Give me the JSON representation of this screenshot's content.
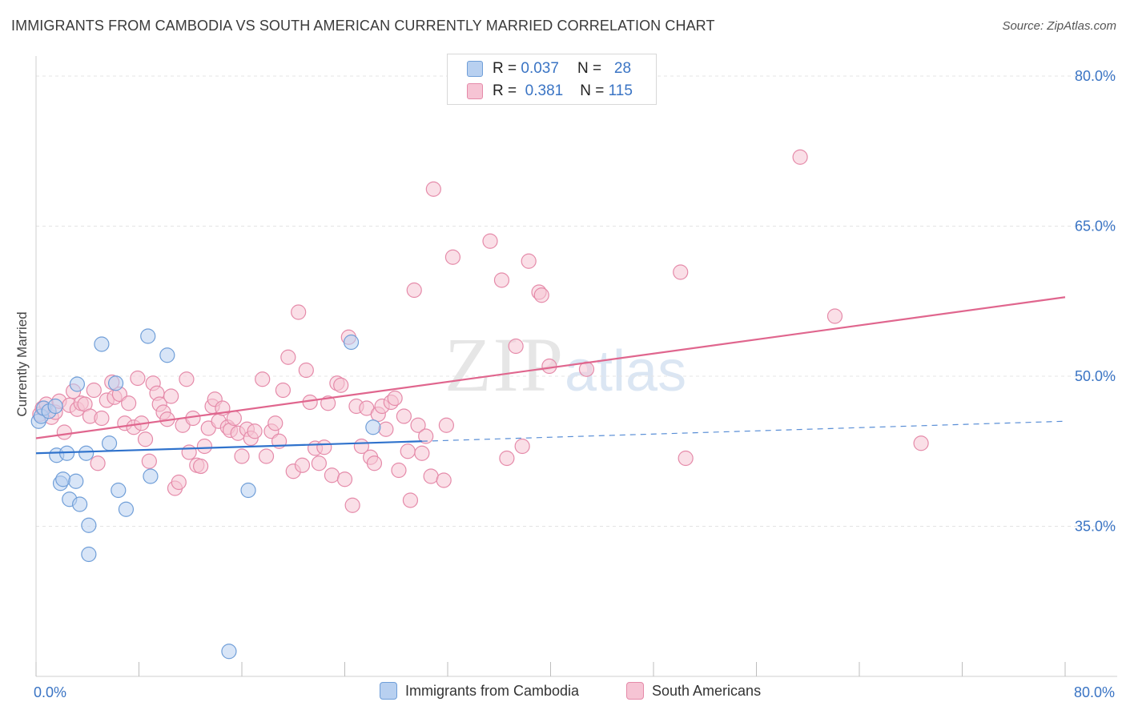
{
  "header": {
    "title": "IMMIGRANTS FROM CAMBODIA VS SOUTH AMERICAN CURRENTLY MARRIED CORRELATION CHART",
    "source": "Source: ZipAtlas.com"
  },
  "watermark": {
    "part1": "ZIP",
    "part2": "atlas"
  },
  "legend_top": [
    {
      "r_label": "R =",
      "r_value": "0.037",
      "n_label": "N =",
      "n_value": "28"
    },
    {
      "r_label": "R =",
      "r_value": "0.381",
      "n_label": "N =",
      "n_value": "115"
    }
  ],
  "legend_bottom": [
    {
      "label": "Immigrants from Cambodia"
    },
    {
      "label": "South Americans"
    }
  ],
  "colors": {
    "blue_fill": "#b8d0f0",
    "blue_stroke": "#6f9ed8",
    "blue_line": "#2f72cc",
    "pink_fill": "#f6c4d4",
    "pink_stroke": "#e58aa9",
    "pink_line": "#e0668e",
    "tick_text": "#3a74c4",
    "grid": "#e4e4e4"
  },
  "chart_data": {
    "type": "scatter",
    "title": "IMMIGRANTS FROM CAMBODIA VS SOUTH AMERICAN CURRENTLY MARRIED CORRELATION CHART",
    "xlabel": "",
    "ylabel": "Currently Married",
    "xlim": [
      0,
      80
    ],
    "ylim": [
      20,
      82
    ],
    "x_tick_labels": [
      {
        "value": 0,
        "label": "0.0%"
      },
      {
        "value": 80,
        "label": "80.0%"
      }
    ],
    "y_tick_labels": [
      {
        "value": 35,
        "label": "35.0%"
      },
      {
        "value": 50,
        "label": "50.0%"
      },
      {
        "value": 65,
        "label": "65.0%"
      },
      {
        "value": 80,
        "label": "80.0%"
      }
    ],
    "grid": true,
    "legend_position": "top-center",
    "series": [
      {
        "name": "Immigrants from Cambodia",
        "r": 0.037,
        "n": 28,
        "trend": {
          "x": [
            0,
            30
          ],
          "y": [
            42.3,
            43.5
          ],
          "dashed_to": [
            80,
            45.5
          ]
        },
        "points": [
          [
            0.2,
            45.5
          ],
          [
            0.4,
            46.0
          ],
          [
            0.6,
            46.8
          ],
          [
            1.0,
            46.5
          ],
          [
            1.5,
            47.0
          ],
          [
            1.6,
            42.1
          ],
          [
            1.9,
            39.3
          ],
          [
            2.1,
            39.7
          ],
          [
            2.4,
            42.3
          ],
          [
            2.6,
            37.7
          ],
          [
            3.1,
            39.5
          ],
          [
            3.2,
            49.2
          ],
          [
            3.4,
            37.2
          ],
          [
            3.9,
            42.3
          ],
          [
            4.1,
            35.1
          ],
          [
            4.1,
            32.2
          ],
          [
            5.1,
            53.2
          ],
          [
            5.7,
            43.3
          ],
          [
            6.2,
            49.3
          ],
          [
            6.4,
            38.6
          ],
          [
            7.0,
            36.7
          ],
          [
            8.7,
            54.0
          ],
          [
            8.9,
            40.0
          ],
          [
            10.2,
            52.1
          ],
          [
            15.0,
            22.5
          ],
          [
            16.5,
            38.6
          ],
          [
            24.5,
            53.4
          ],
          [
            26.2,
            44.9
          ]
        ]
      },
      {
        "name": "South Americans",
        "r": 0.381,
        "n": 115,
        "trend": {
          "x": [
            0,
            80
          ],
          "y": [
            43.8,
            57.9
          ]
        },
        "points": [
          [
            0.3,
            46.2
          ],
          [
            0.5,
            46.8
          ],
          [
            0.8,
            47.2
          ],
          [
            1.2,
            45.9
          ],
          [
            1.5,
            46.4
          ],
          [
            1.8,
            47.5
          ],
          [
            2.2,
            44.4
          ],
          [
            2.6,
            47.1
          ],
          [
            2.9,
            48.5
          ],
          [
            3.2,
            46.7
          ],
          [
            3.5,
            47.3
          ],
          [
            3.8,
            47.2
          ],
          [
            4.2,
            46.0
          ],
          [
            4.5,
            48.6
          ],
          [
            4.8,
            41.3
          ],
          [
            5.1,
            45.8
          ],
          [
            5.5,
            47.6
          ],
          [
            5.9,
            49.4
          ],
          [
            6.1,
            47.9
          ],
          [
            6.5,
            48.2
          ],
          [
            6.9,
            45.3
          ],
          [
            7.2,
            47.3
          ],
          [
            7.6,
            44.9
          ],
          [
            7.9,
            49.8
          ],
          [
            8.2,
            45.3
          ],
          [
            8.5,
            43.7
          ],
          [
            8.8,
            41.5
          ],
          [
            9.1,
            49.3
          ],
          [
            9.4,
            48.3
          ],
          [
            9.6,
            47.2
          ],
          [
            9.9,
            46.4
          ],
          [
            10.2,
            45.7
          ],
          [
            10.5,
            48.0
          ],
          [
            10.8,
            38.8
          ],
          [
            11.1,
            39.4
          ],
          [
            11.4,
            45.1
          ],
          [
            11.7,
            49.7
          ],
          [
            11.9,
            42.4
          ],
          [
            12.2,
            45.8
          ],
          [
            12.5,
            41.1
          ],
          [
            12.8,
            41.0
          ],
          [
            13.1,
            43.0
          ],
          [
            13.4,
            44.8
          ],
          [
            13.7,
            47.0
          ],
          [
            13.9,
            47.7
          ],
          [
            14.2,
            45.5
          ],
          [
            14.5,
            46.8
          ],
          [
            14.9,
            44.9
          ],
          [
            15.1,
            44.6
          ],
          [
            15.4,
            45.8
          ],
          [
            15.7,
            44.3
          ],
          [
            16.0,
            42.0
          ],
          [
            16.4,
            44.7
          ],
          [
            16.7,
            43.8
          ],
          [
            17.0,
            44.5
          ],
          [
            17.6,
            49.7
          ],
          [
            17.9,
            42.0
          ],
          [
            18.3,
            44.5
          ],
          [
            18.6,
            45.3
          ],
          [
            18.9,
            43.5
          ],
          [
            19.2,
            48.6
          ],
          [
            19.6,
            51.9
          ],
          [
            20.0,
            40.5
          ],
          [
            20.4,
            56.4
          ],
          [
            20.7,
            41.1
          ],
          [
            21.0,
            50.6
          ],
          [
            21.3,
            47.4
          ],
          [
            21.7,
            42.8
          ],
          [
            22.0,
            41.3
          ],
          [
            22.4,
            42.9
          ],
          [
            22.7,
            47.3
          ],
          [
            23.0,
            40.1
          ],
          [
            23.4,
            49.3
          ],
          [
            23.7,
            49.1
          ],
          [
            24.0,
            39.7
          ],
          [
            24.3,
            53.9
          ],
          [
            24.6,
            37.1
          ],
          [
            24.9,
            47.0
          ],
          [
            25.3,
            43.0
          ],
          [
            25.7,
            46.8
          ],
          [
            26.0,
            41.9
          ],
          [
            26.3,
            41.3
          ],
          [
            26.6,
            46.2
          ],
          [
            26.9,
            47.0
          ],
          [
            27.2,
            44.7
          ],
          [
            27.6,
            47.4
          ],
          [
            27.9,
            47.8
          ],
          [
            28.2,
            40.6
          ],
          [
            28.6,
            46.0
          ],
          [
            28.9,
            42.5
          ],
          [
            29.1,
            37.6
          ],
          [
            29.4,
            58.6
          ],
          [
            29.7,
            45.1
          ],
          [
            30.0,
            42.3
          ],
          [
            30.3,
            44.0
          ],
          [
            30.7,
            40.0
          ],
          [
            30.9,
            68.7
          ],
          [
            31.7,
            39.6
          ],
          [
            31.9,
            45.1
          ],
          [
            32.4,
            61.9
          ],
          [
            35.3,
            63.5
          ],
          [
            36.2,
            59.6
          ],
          [
            36.6,
            41.8
          ],
          [
            37.3,
            53.0
          ],
          [
            37.8,
            43.0
          ],
          [
            38.3,
            61.5
          ],
          [
            39.1,
            58.4
          ],
          [
            39.3,
            58.1
          ],
          [
            39.9,
            51.0
          ],
          [
            42.8,
            50.7
          ],
          [
            50.1,
            60.4
          ],
          [
            50.5,
            41.8
          ],
          [
            59.4,
            71.9
          ],
          [
            62.1,
            56.0
          ],
          [
            68.8,
            43.3
          ]
        ]
      }
    ]
  }
}
